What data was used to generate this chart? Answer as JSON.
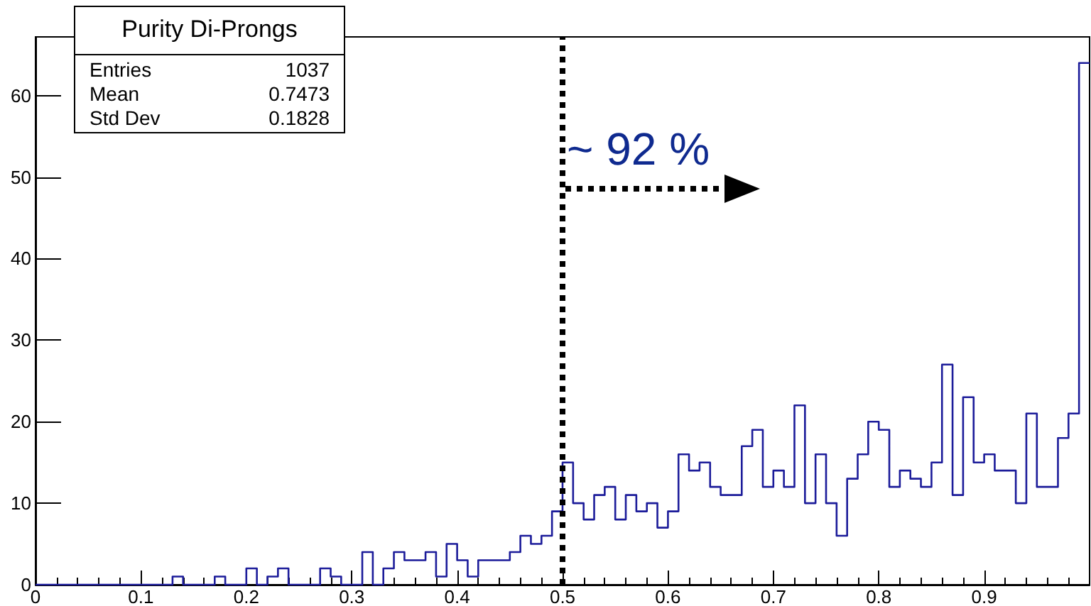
{
  "chart_data": {
    "type": "histogram",
    "title": "Purity Di-Prongs",
    "bins": [
      0,
      0.01,
      0.02,
      0.03,
      0.04,
      0.05,
      0.06,
      0.07,
      0.08,
      0.09,
      0.1,
      0.11,
      0.12,
      0.13,
      0.14,
      0.15,
      0.16,
      0.17,
      0.18,
      0.19,
      0.2,
      0.21,
      0.22,
      0.23,
      0.24,
      0.25,
      0.26,
      0.27,
      0.28,
      0.29,
      0.3,
      0.31,
      0.32,
      0.33,
      0.34,
      0.35,
      0.36,
      0.37,
      0.38,
      0.39,
      0.4,
      0.41,
      0.42,
      0.43,
      0.44,
      0.45,
      0.46,
      0.47,
      0.48,
      0.49,
      0.5,
      0.51,
      0.52,
      0.53,
      0.54,
      0.55,
      0.56,
      0.57,
      0.58,
      0.59,
      0.6,
      0.61,
      0.62,
      0.63,
      0.64,
      0.65,
      0.66,
      0.67,
      0.68,
      0.69,
      0.7,
      0.71,
      0.72,
      0.73,
      0.74,
      0.75,
      0.76,
      0.77,
      0.78,
      0.79,
      0.8,
      0.81,
      0.82,
      0.83,
      0.84,
      0.85,
      0.86,
      0.87,
      0.88,
      0.89,
      0.9,
      0.91,
      0.92,
      0.93,
      0.94,
      0.95,
      0.96,
      0.97,
      0.98,
      0.99,
      1
    ],
    "values": [
      0,
      0,
      0,
      0,
      0,
      0,
      0,
      0,
      0,
      0,
      0,
      0,
      0,
      1,
      0,
      0,
      0,
      1,
      0,
      0,
      2,
      0,
      1,
      2,
      0,
      0,
      0,
      2,
      1,
      0,
      0,
      4,
      0,
      2,
      4,
      3,
      3,
      4,
      1,
      5,
      3,
      1,
      3,
      3,
      3,
      4,
      6,
      5,
      6,
      9,
      15,
      10,
      8,
      11,
      12,
      8,
      11,
      9,
      10,
      7,
      9,
      16,
      14,
      15,
      12,
      11,
      11,
      17,
      19,
      12,
      14,
      12,
      22,
      10,
      16,
      10,
      6,
      13,
      16,
      20,
      19,
      12,
      14,
      13,
      12,
      15,
      27,
      11,
      23,
      15,
      16,
      14,
      14,
      10,
      21,
      12,
      12,
      18,
      21,
      64
    ],
    "color": "#1c1c9a",
    "xlim": [
      0,
      1
    ],
    "xticks": [
      0,
      0.1,
      0.2,
      0.3,
      0.4,
      0.5,
      0.6,
      0.7,
      0.8,
      0.9
    ],
    "ylim": [
      0,
      67.2
    ],
    "yticks": [
      0,
      10,
      20,
      30,
      40,
      50,
      60
    ],
    "grid": false,
    "ref_lines": [
      {
        "axis": "x",
        "value": 0.5,
        "color": "#000000",
        "line_style": "dotted"
      }
    ],
    "annotations": [
      "Entries",
      "1037",
      "Mean",
      "0.7473",
      "Std Dev",
      "0.1828",
      {
        "text": "~ 92 %",
        "x": 0.5,
        "y": 48.5
      }
    ]
  }
}
